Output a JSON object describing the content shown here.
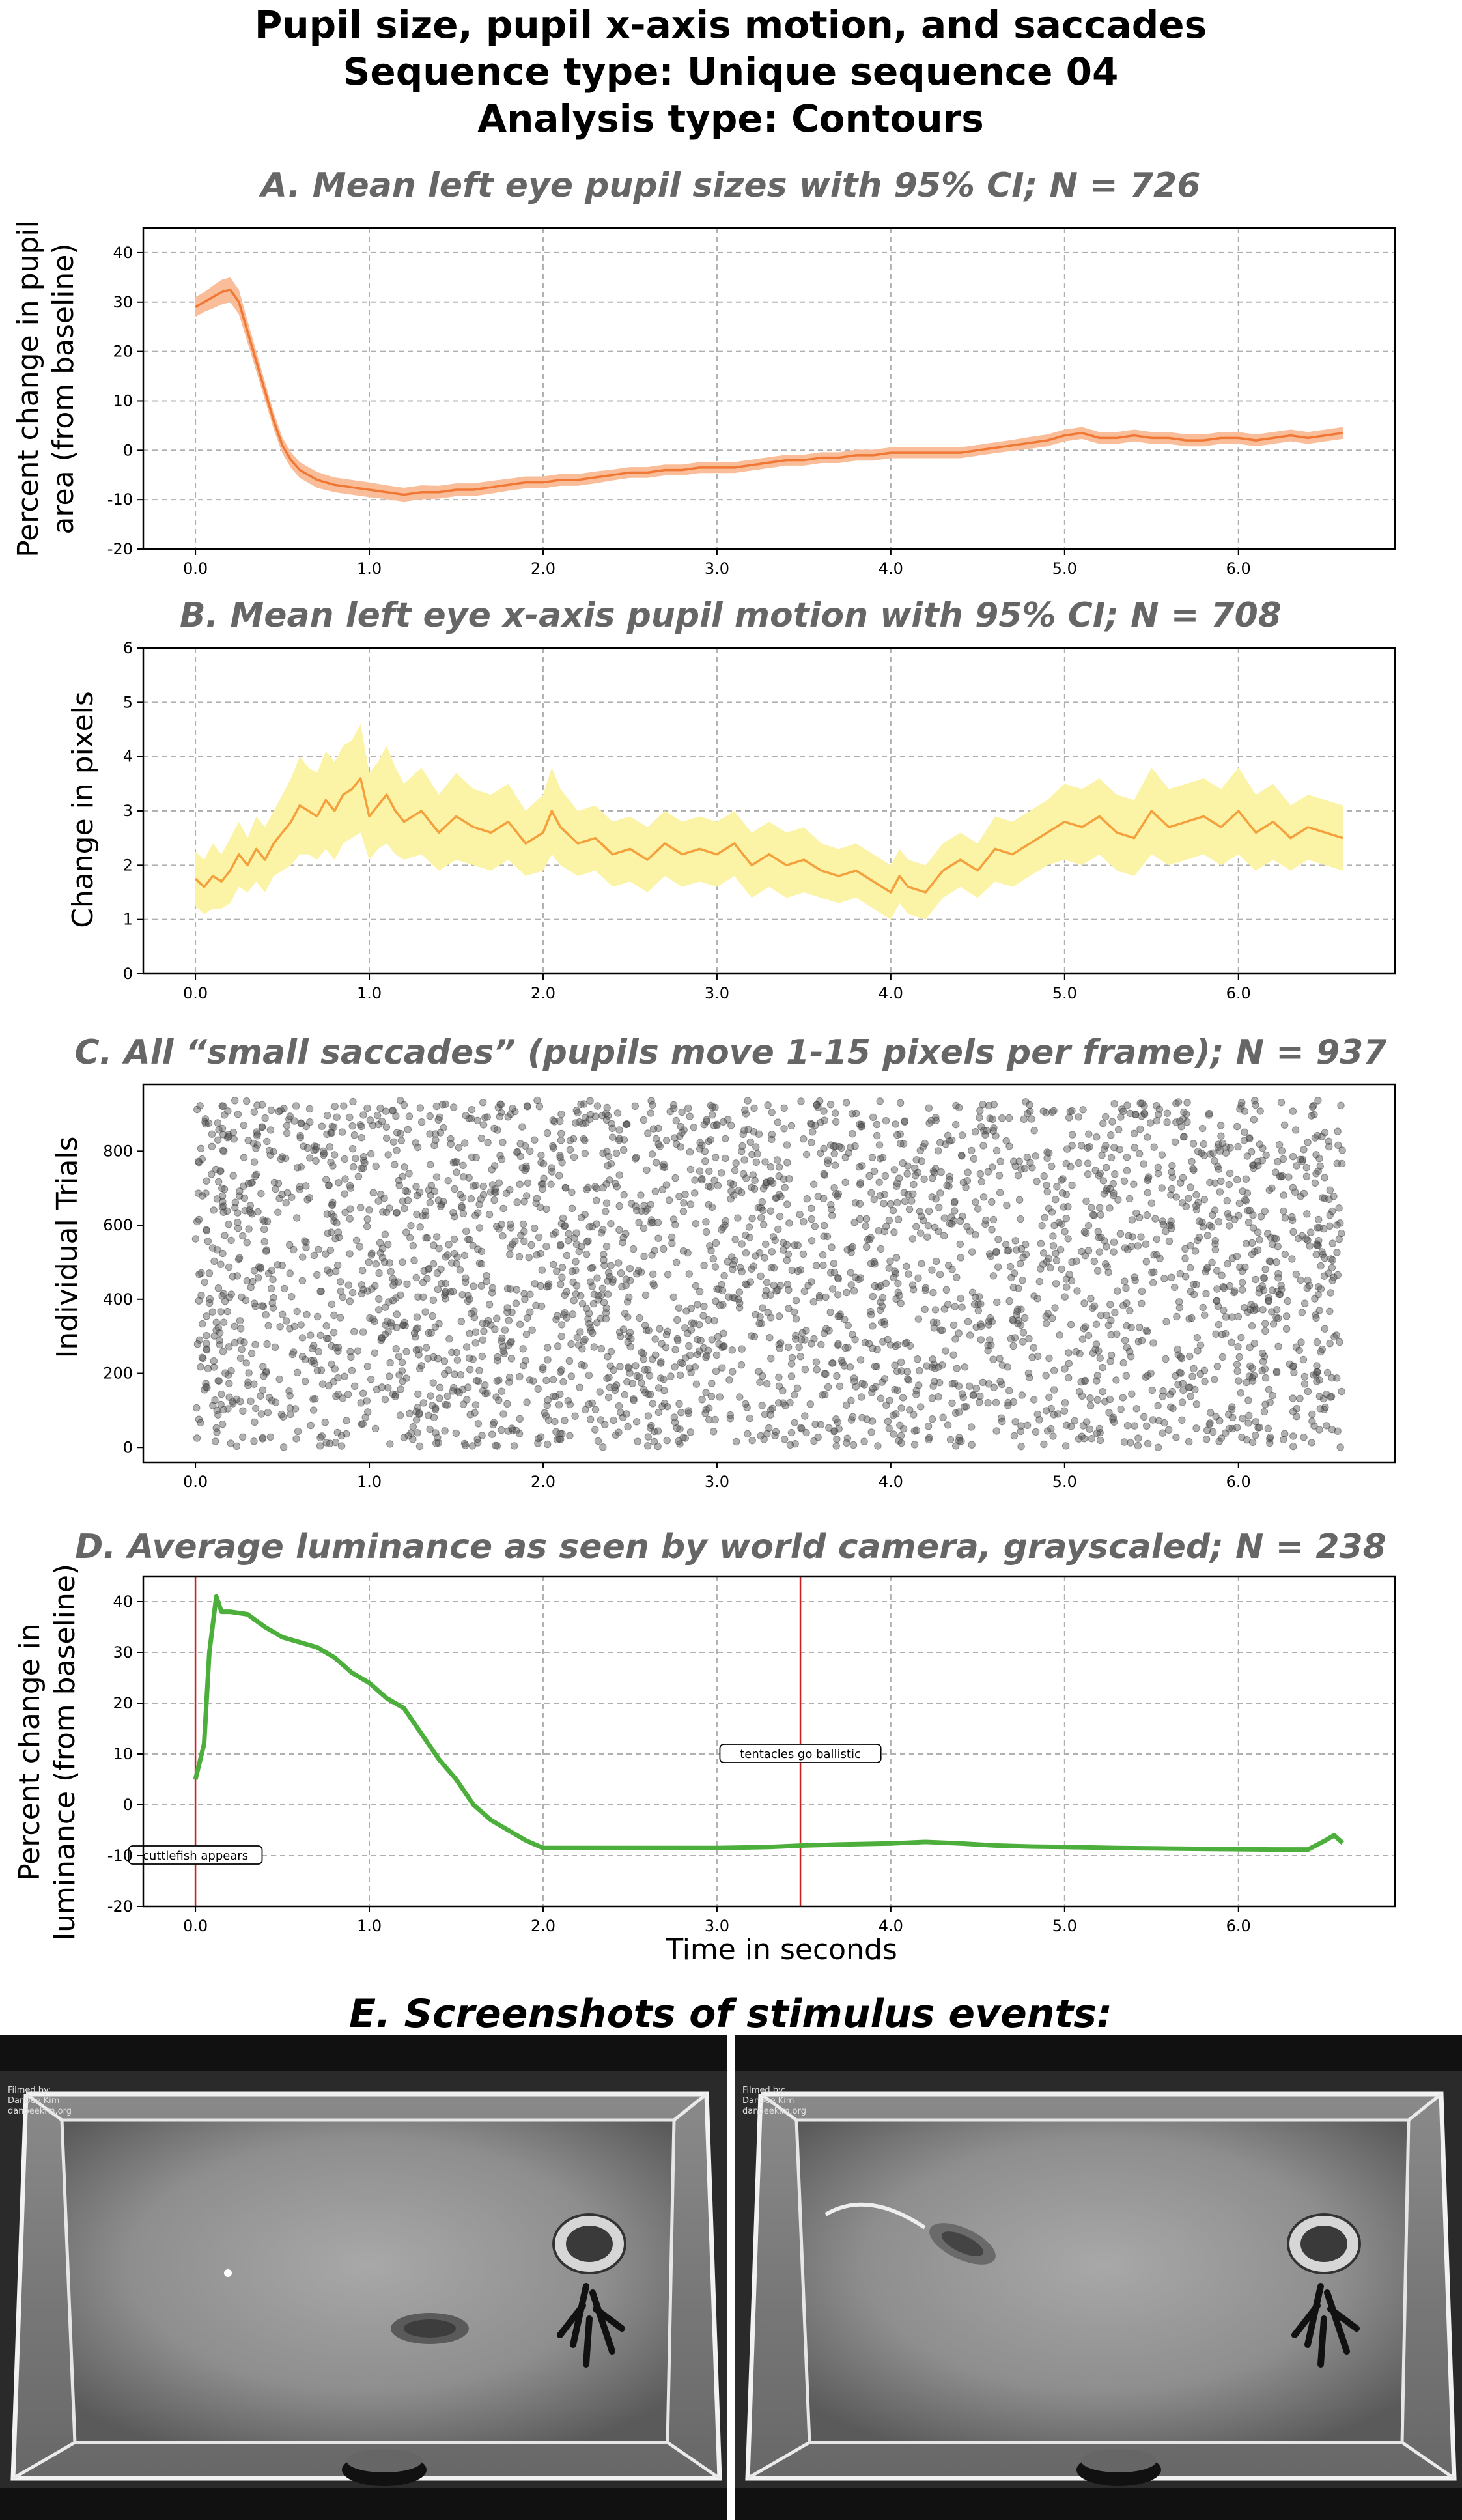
{
  "figure": {
    "title_lines": [
      "Pupil size, pupil x-axis motion, and saccades",
      "Sequence type: Unique sequence 04",
      "Analysis type: Contours"
    ],
    "panel_e_title": "E. Screenshots of stimulus events:",
    "screenshot_credit": [
      "Filmed by:",
      "Danbee Kim",
      "danbeekim.org"
    ]
  },
  "chart_data": [
    {
      "id": "A",
      "type": "line",
      "title": "A. Mean left eye pupil sizes with 95% CI; N = 726",
      "ylabel": "Percent change in pupil area (from baseline)",
      "ylabel_lines": [
        "Percent change in pupil",
        "area (from baseline)"
      ],
      "xlabel": "",
      "xlim": [
        -0.3,
        6.9
      ],
      "ylim": [
        -20,
        45
      ],
      "xticks": [
        0.0,
        1.0,
        2.0,
        3.0,
        4.0,
        5.0,
        6.0
      ],
      "xtick_labels": [
        "0.0",
        "1.0",
        "2.0",
        "3.0",
        "4.0",
        "5.0",
        "6.0"
      ],
      "yticks": [
        -20,
        -10,
        0,
        10,
        20,
        30,
        40
      ],
      "ytick_labels": [
        "-20",
        "-10",
        "0",
        "10",
        "20",
        "30",
        "40"
      ],
      "grid": true,
      "color": "#f07834",
      "ci_color": "#f9bd99",
      "x": [
        0.0,
        0.05,
        0.1,
        0.15,
        0.2,
        0.25,
        0.3,
        0.35,
        0.4,
        0.45,
        0.5,
        0.55,
        0.6,
        0.65,
        0.7,
        0.8,
        0.9,
        1.0,
        1.1,
        1.2,
        1.3,
        1.4,
        1.5,
        1.6,
        1.7,
        1.8,
        1.9,
        2.0,
        2.1,
        2.2,
        2.3,
        2.4,
        2.5,
        2.6,
        2.7,
        2.8,
        2.9,
        3.0,
        3.1,
        3.2,
        3.3,
        3.4,
        3.5,
        3.6,
        3.7,
        3.8,
        3.9,
        4.0,
        4.1,
        4.2,
        4.3,
        4.4,
        4.5,
        4.6,
        4.7,
        4.8,
        4.9,
        5.0,
        5.1,
        5.2,
        5.3,
        5.4,
        5.5,
        5.6,
        5.7,
        5.8,
        5.9,
        6.0,
        6.1,
        6.2,
        6.3,
        6.4,
        6.5,
        6.6
      ],
      "y": [
        29,
        30,
        31,
        32,
        32.5,
        30,
        24,
        18,
        12,
        6,
        1,
        -2,
        -4,
        -5,
        -6,
        -7,
        -7.5,
        -8,
        -8.5,
        -9,
        -8.5,
        -8.5,
        -8,
        -8,
        -7.5,
        -7,
        -6.5,
        -6.5,
        -6,
        -6,
        -5.5,
        -5,
        -4.5,
        -4.5,
        -4,
        -4,
        -3.5,
        -3.5,
        -3.5,
        -3,
        -2.5,
        -2,
        -2,
        -1.5,
        -1.5,
        -1,
        -1,
        -0.5,
        -0.5,
        -0.5,
        -0.5,
        -0.5,
        0,
        0.5,
        1,
        1.5,
        2,
        3,
        3.5,
        2.5,
        2.5,
        3,
        2.5,
        2.5,
        2,
        2,
        2.5,
        2.5,
        2,
        2.5,
        3,
        2.5,
        3,
        3.5
      ],
      "ci_halfwidth": [
        2,
        2,
        2.3,
        2.5,
        2.5,
        2.5,
        2.2,
        2,
        1.8,
        1.7,
        1.6,
        1.6,
        1.6,
        1.6,
        1.6,
        1.5,
        1.5,
        1.5,
        1.4,
        1.4,
        1.4,
        1.3,
        1.3,
        1.3,
        1.3,
        1.2,
        1.2,
        1.2,
        1.2,
        1.2,
        1.2,
        1.1,
        1.1,
        1.1,
        1.1,
        1.1,
        1.1,
        1.1,
        1.1,
        1.1,
        1.1,
        1.1,
        1.1,
        1.1,
        1.1,
        1.1,
        1.1,
        1.1,
        1.1,
        1.1,
        1.1,
        1.1,
        1.1,
        1.1,
        1.1,
        1.2,
        1.2,
        1.2,
        1.2,
        1.2,
        1.2,
        1.2,
        1.2,
        1.2,
        1.2,
        1.2,
        1.2,
        1.2,
        1.2,
        1.2,
        1.2,
        1.2,
        1.2,
        1.2
      ]
    },
    {
      "id": "B",
      "type": "line",
      "title": "B. Mean left eye x-axis pupil motion with 95% CI; N = 708",
      "ylabel": "Change in pixels",
      "xlabel": "",
      "xlim": [
        -0.3,
        6.9
      ],
      "ylim": [
        0,
        6
      ],
      "xticks": [
        0.0,
        1.0,
        2.0,
        3.0,
        4.0,
        5.0,
        6.0
      ],
      "xtick_labels": [
        "0.0",
        "1.0",
        "2.0",
        "3.0",
        "4.0",
        "5.0",
        "6.0"
      ],
      "yticks": [
        0,
        1,
        2,
        3,
        4,
        5,
        6
      ],
      "ytick_labels": [
        "0",
        "1",
        "2",
        "3",
        "4",
        "5",
        "6"
      ],
      "grid": true,
      "color": "#f4a03c",
      "ci_color": "#fbf3a6",
      "x": [
        0.0,
        0.05,
        0.1,
        0.15,
        0.2,
        0.25,
        0.3,
        0.35,
        0.4,
        0.45,
        0.5,
        0.55,
        0.6,
        0.65,
        0.7,
        0.75,
        0.8,
        0.85,
        0.9,
        0.95,
        1.0,
        1.05,
        1.1,
        1.15,
        1.2,
        1.3,
        1.4,
        1.5,
        1.6,
        1.7,
        1.8,
        1.9,
        2.0,
        2.05,
        2.1,
        2.2,
        2.3,
        2.4,
        2.5,
        2.6,
        2.7,
        2.8,
        2.9,
        3.0,
        3.1,
        3.2,
        3.3,
        3.4,
        3.5,
        3.6,
        3.7,
        3.8,
        3.9,
        4.0,
        4.05,
        4.1,
        4.2,
        4.3,
        4.4,
        4.5,
        4.6,
        4.7,
        4.8,
        4.9,
        5.0,
        5.1,
        5.2,
        5.3,
        5.4,
        5.5,
        5.6,
        5.7,
        5.8,
        5.9,
        6.0,
        6.1,
        6.2,
        6.3,
        6.4,
        6.5,
        6.6
      ],
      "y": [
        1.75,
        1.6,
        1.8,
        1.7,
        1.9,
        2.2,
        2.0,
        2.3,
        2.1,
        2.4,
        2.6,
        2.8,
        3.1,
        3.0,
        2.9,
        3.2,
        3.0,
        3.3,
        3.4,
        3.6,
        2.9,
        3.1,
        3.3,
        3.0,
        2.8,
        3.0,
        2.6,
        2.9,
        2.7,
        2.6,
        2.8,
        2.4,
        2.6,
        3.0,
        2.7,
        2.4,
        2.5,
        2.2,
        2.3,
        2.1,
        2.4,
        2.2,
        2.3,
        2.2,
        2.4,
        2.0,
        2.2,
        2.0,
        2.1,
        1.9,
        1.8,
        1.9,
        1.7,
        1.5,
        1.8,
        1.6,
        1.5,
        1.9,
        2.1,
        1.9,
        2.3,
        2.2,
        2.4,
        2.6,
        2.8,
        2.7,
        2.9,
        2.6,
        2.5,
        3.0,
        2.7,
        2.8,
        2.9,
        2.7,
        3.0,
        2.6,
        2.8,
        2.5,
        2.7,
        2.6,
        2.5
      ],
      "ci_halfwidth": [
        0.5,
        0.5,
        0.6,
        0.5,
        0.6,
        0.6,
        0.5,
        0.6,
        0.6,
        0.6,
        0.7,
        0.8,
        0.9,
        0.8,
        0.8,
        0.9,
        0.9,
        0.9,
        0.9,
        1.0,
        0.8,
        0.8,
        0.9,
        0.8,
        0.7,
        0.8,
        0.7,
        0.8,
        0.7,
        0.7,
        0.7,
        0.6,
        0.7,
        0.8,
        0.7,
        0.6,
        0.6,
        0.6,
        0.6,
        0.6,
        0.6,
        0.6,
        0.6,
        0.6,
        0.6,
        0.6,
        0.6,
        0.6,
        0.6,
        0.5,
        0.5,
        0.5,
        0.5,
        0.5,
        0.5,
        0.5,
        0.5,
        0.5,
        0.5,
        0.5,
        0.6,
        0.6,
        0.6,
        0.6,
        0.7,
        0.7,
        0.7,
        0.7,
        0.7,
        0.8,
        0.7,
        0.7,
        0.7,
        0.7,
        0.8,
        0.7,
        0.7,
        0.6,
        0.6,
        0.6,
        0.6
      ]
    },
    {
      "id": "C",
      "type": "scatter",
      "title": "C. All “small saccades” (pupils move 1-15 pixels per frame); N = 937",
      "ylabel": "Individual Trials",
      "xlabel": "",
      "xlim": [
        -0.3,
        6.9
      ],
      "ylim": [
        -40,
        980
      ],
      "xticks": [
        0.0,
        1.0,
        2.0,
        3.0,
        4.0,
        5.0,
        6.0
      ],
      "xtick_labels": [
        "0.0",
        "1.0",
        "2.0",
        "3.0",
        "4.0",
        "5.0",
        "6.0"
      ],
      "yticks": [
        0,
        200,
        400,
        600,
        800
      ],
      "ytick_labels": [
        "0",
        "200",
        "400",
        "600",
        "800"
      ],
      "grid": false,
      "point_color": "#555555",
      "point_count": 3200,
      "x_range": [
        0.0,
        6.6
      ],
      "y_range": [
        0,
        937
      ]
    },
    {
      "id": "D",
      "type": "line",
      "title": "D. Average luminance as seen by world camera, grayscaled; N = 238",
      "ylabel": "Percent change in luminance (from baseline)",
      "ylabel_lines": [
        "Percent change in",
        "luminance (from baseline)"
      ],
      "xlabel": "Time in seconds",
      "xlim": [
        -0.3,
        6.9
      ],
      "ylim": [
        -20,
        45
      ],
      "xticks": [
        0.0,
        1.0,
        2.0,
        3.0,
        4.0,
        5.0,
        6.0
      ],
      "xtick_labels": [
        "0.0",
        "1.0",
        "2.0",
        "3.0",
        "4.0",
        "5.0",
        "6.0"
      ],
      "yticks": [
        -20,
        -10,
        0,
        10,
        20,
        30,
        40
      ],
      "ytick_labels": [
        "-20",
        "-10",
        "0",
        "10",
        "20",
        "30",
        "40"
      ],
      "grid": true,
      "color": "#4caf3c",
      "x": [
        0.0,
        0.05,
        0.08,
        0.12,
        0.15,
        0.2,
        0.3,
        0.4,
        0.5,
        0.6,
        0.7,
        0.8,
        0.9,
        1.0,
        1.1,
        1.2,
        1.3,
        1.4,
        1.5,
        1.6,
        1.7,
        1.8,
        1.9,
        2.0,
        2.1,
        2.3,
        2.5,
        2.7,
        3.0,
        3.3,
        3.5,
        3.7,
        4.0,
        4.2,
        4.4,
        4.6,
        4.8,
        5.0,
        5.3,
        5.6,
        5.9,
        6.2,
        6.4,
        6.5,
        6.55,
        6.6
      ],
      "y": [
        5,
        12,
        30,
        41,
        38,
        38,
        37.5,
        35,
        33,
        32,
        31,
        29,
        26,
        24,
        21,
        19,
        14,
        9,
        5,
        0,
        -3,
        -5,
        -7,
        -8.5,
        -8.5,
        -8.5,
        -8.5,
        -8.5,
        -8.5,
        -8.3,
        -8,
        -7.8,
        -7.6,
        -7.3,
        -7.6,
        -8,
        -8.2,
        -8.3,
        -8.5,
        -8.6,
        -8.7,
        -8.8,
        -8.8,
        -7,
        -6,
        -7.5
      ],
      "events": [
        {
          "x": 0.0,
          "label": "cuttlefish appears",
          "label_y": -10
        },
        {
          "x": 3.48,
          "label": "tentacles go ballistic",
          "label_y": 10
        }
      ],
      "event_color": "#cc2020"
    }
  ]
}
